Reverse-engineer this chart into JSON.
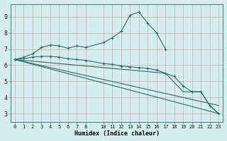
{
  "xlabel": "Humidex (Indice chaleur)",
  "bg_color": "#d4eeee",
  "grid_color_v": "#d4a8a8",
  "grid_color_h": "#d4a8a8",
  "line_color": "#2a6e62",
  "xlim": [
    -0.5,
    23.5
  ],
  "ylim": [
    2.5,
    9.8
  ],
  "xticks": [
    0,
    1,
    2,
    3,
    4,
    5,
    6,
    7,
    8,
    10,
    11,
    12,
    13,
    14,
    15,
    16,
    17,
    18,
    19,
    20,
    21,
    22,
    23
  ],
  "yticks": [
    3,
    4,
    5,
    6,
    7,
    8,
    9
  ],
  "series1_x": [
    0,
    1,
    2,
    3,
    4,
    5,
    6,
    7,
    8,
    10,
    11,
    12,
    13,
    14,
    15,
    16,
    17
  ],
  "series1_y": [
    6.35,
    6.5,
    6.7,
    7.1,
    7.25,
    7.2,
    7.05,
    7.2,
    7.1,
    7.4,
    7.7,
    8.1,
    9.1,
    9.3,
    8.6,
    8.0,
    7.0
  ],
  "series2_x": [
    0,
    1,
    2,
    3,
    4,
    5,
    6,
    7,
    8,
    10,
    11,
    12,
    13,
    14,
    15,
    16,
    17,
    18,
    19,
    20,
    21,
    22,
    23
  ],
  "series2_y": [
    6.35,
    6.4,
    6.5,
    6.55,
    6.55,
    6.5,
    6.4,
    6.35,
    6.3,
    6.1,
    6.05,
    5.95,
    5.9,
    5.85,
    5.8,
    5.7,
    5.5,
    5.3,
    4.7,
    4.35,
    4.35,
    3.5,
    3.0
  ],
  "series3_x": [
    0,
    17,
    19,
    20,
    21,
    22,
    23
  ],
  "series3_y": [
    6.35,
    5.5,
    4.35,
    4.35,
    4.35,
    3.5,
    3.0
  ],
  "series4_x": [
    0,
    23
  ],
  "series4_y": [
    6.35,
    3.0
  ],
  "series5_x": [
    0,
    23
  ],
  "series5_y": [
    6.35,
    3.5
  ]
}
